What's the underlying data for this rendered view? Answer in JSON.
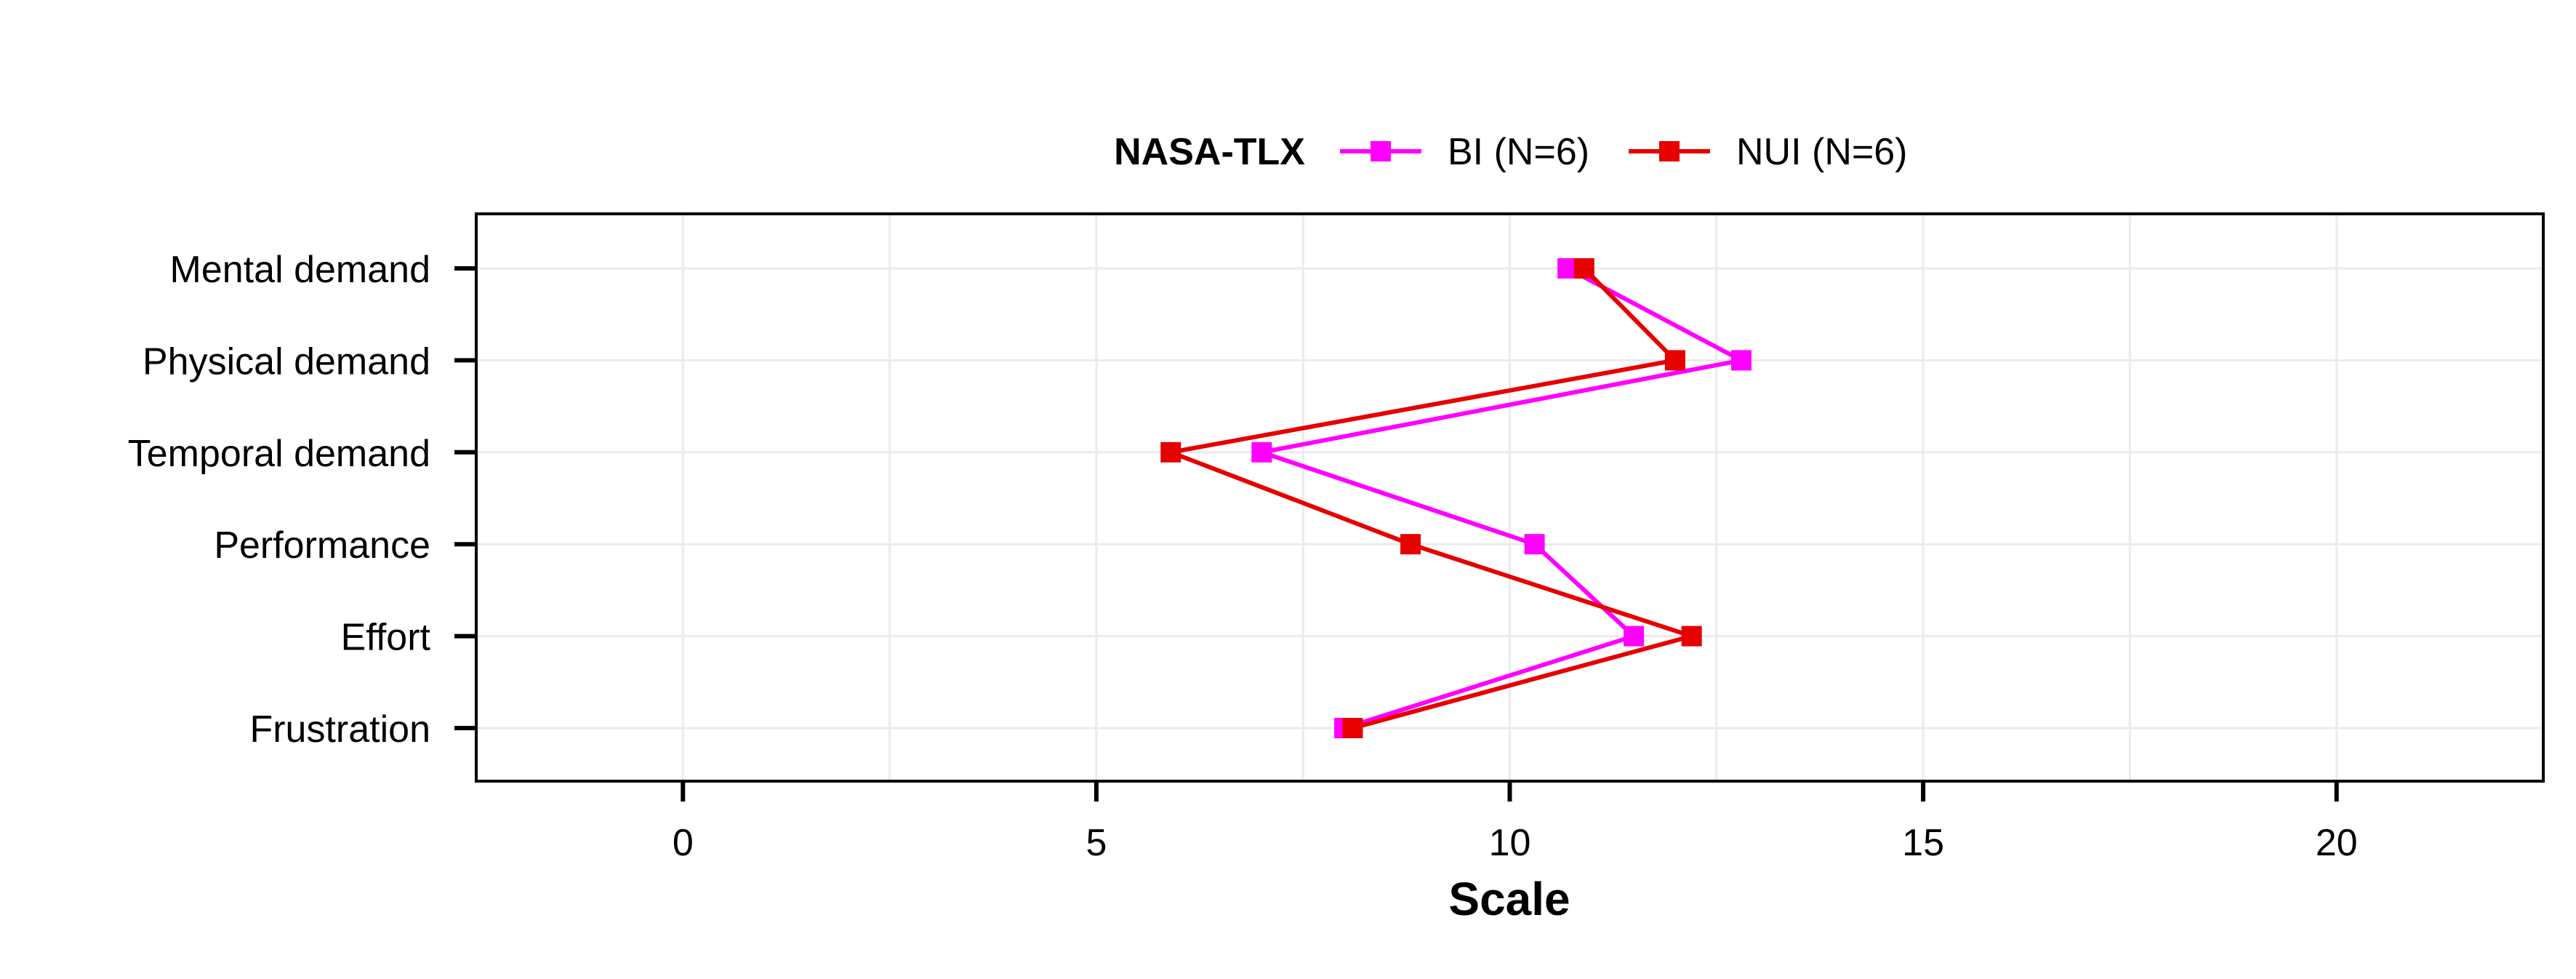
{
  "chart_data": {
    "type": "line",
    "title": "",
    "xlabel": "Scale",
    "ylabel": "",
    "xlim": [
      -2.5,
      22.5
    ],
    "xticks": [
      0,
      5,
      10,
      15,
      20
    ],
    "xtick_labels": [
      "0",
      "5",
      "10",
      "15",
      "20"
    ],
    "categories": [
      "Mental demand",
      "Physical demand",
      "Temporal demand",
      "Performance",
      "Effort",
      "Frustration"
    ],
    "grid": true,
    "legend": {
      "title": "NASA-TLX",
      "position": "top"
    },
    "series": [
      {
        "name": "BI (N=6)",
        "color": "#ff00ff",
        "marker": "square",
        "values": [
          10.7,
          12.8,
          7.0,
          10.3,
          11.5,
          8.0
        ]
      },
      {
        "name": "NUI (N=6)",
        "color": "#e60000",
        "marker": "square",
        "values": [
          10.9,
          12.0,
          5.9,
          8.8,
          12.2,
          8.1
        ]
      }
    ]
  }
}
